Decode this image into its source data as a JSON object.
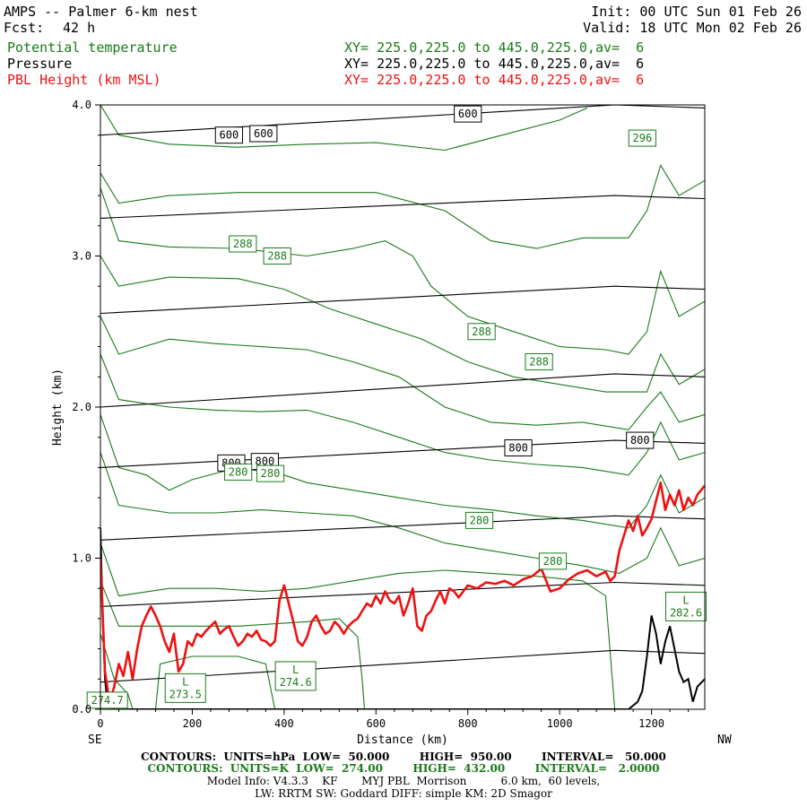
{
  "header": {
    "title": "AMPS -- Palmer 6-km nest",
    "init": "Init: 00 UTC Sun 01 Feb 26",
    "fcst_label": "Fcst:",
    "fcst_value": "42 h",
    "valid": "Valid: 18 UTC Mon 02 Feb 26",
    "fields": [
      {
        "name": "Potential temperature",
        "xy": "XY= 225.0,225.0 to 445.0,225.0,av=  6",
        "color": "#1a7a1a"
      },
      {
        "name": "Pressure",
        "xy": "XY= 225.0,225.0 to 445.0,225.0,av=  6",
        "color": "#000000"
      },
      {
        "name": "PBL Height (km MSL)",
        "xy": "XY= 225.0,225.0 to 445.0,225.0,av=  6",
        "color": "#ee1111"
      }
    ]
  },
  "footer": {
    "line1": "CONTOURS:  UNITS=hPa  LOW=  50.000        HIGH=  950.00        INTERVAL=   50.000",
    "line2": "CONTOURS:  UNITS=K  LOW=  274.00        HIGH=  432.00        INTERVAL=   2.0000",
    "line3": "Model Info: V4.3.3    KF       MYJ PBL  Morrison          6.0 km,  60 levels,",
    "line4": "LW: RRTM SW: Goddard DIFF: simple KM: 2D Smagor"
  },
  "chart_data": {
    "type": "line",
    "title": "AMPS -- Palmer 6-km nest",
    "xlabel": "Distance (km)",
    "ylabel": "Height (km)",
    "x_left_label": "SE",
    "x_right_label": "NW",
    "xlim": [
      0,
      1316
    ],
    "ylim": [
      0,
      4.0
    ],
    "xticks": [
      0,
      200,
      400,
      600,
      800,
      1000,
      1200
    ],
    "yticks": [
      0.0,
      1.0,
      2.0,
      3.0,
      4.0
    ],
    "ytick_labels": [
      "0.0",
      "1.0",
      "2.0",
      "3.0",
      "4.0"
    ],
    "pressure_contours": {
      "color": "#000000",
      "levels": [
        {
          "start": [
            0,
            0.18
          ],
          "end": [
            1120,
            0.39
          ]
        },
        {
          "start": [
            0,
            0.68
          ],
          "end": [
            1120,
            0.84
          ]
        },
        {
          "start": [
            0,
            1.12
          ],
          "end": [
            1120,
            1.28
          ]
        },
        {
          "start": [
            0,
            1.6
          ],
          "end": [
            1120,
            1.78
          ]
        },
        {
          "start": [
            0,
            2.0
          ],
          "end": [
            1120,
            2.22
          ]
        },
        {
          "start": [
            0,
            2.62
          ],
          "end": [
            1120,
            2.8
          ]
        },
        {
          "start": [
            0,
            3.25
          ],
          "end": [
            1120,
            3.4
          ]
        },
        {
          "start": [
            0,
            3.8
          ],
          "end": [
            1120,
            4.0
          ]
        }
      ],
      "labels": [
        {
          "text": "600",
          "x": 280,
          "y": 3.8
        },
        {
          "text": "600",
          "x": 355,
          "y": 3.81
        },
        {
          "text": "600",
          "x": 800,
          "y": 3.94
        },
        {
          "text": "800",
          "x": 285,
          "y": 1.63
        },
        {
          "text": "800",
          "x": 358,
          "y": 1.64
        },
        {
          "text": "800",
          "x": 910,
          "y": 1.73
        },
        {
          "text": "800",
          "x": 1175,
          "y": 1.78
        }
      ]
    },
    "theta_contours": {
      "color": "#1a7a1a",
      "series": [
        [
          [
            0,
            4.0
          ],
          [
            40,
            3.8
          ],
          [
            150,
            3.74
          ],
          [
            300,
            3.72
          ],
          [
            450,
            3.74
          ],
          [
            600,
            3.75
          ],
          [
            750,
            3.7
          ],
          [
            900,
            3.82
          ],
          [
            1000,
            3.9
          ],
          [
            1060,
            3.98
          ]
        ],
        [
          [
            0,
            3.55
          ],
          [
            40,
            3.35
          ],
          [
            150,
            3.4
          ],
          [
            300,
            3.42
          ],
          [
            450,
            3.42
          ],
          [
            600,
            3.42
          ],
          [
            750,
            3.3
          ],
          [
            850,
            3.1
          ],
          [
            950,
            3.05
          ],
          [
            1050,
            3.12
          ],
          [
            1150,
            3.12
          ],
          [
            1190,
            3.3
          ],
          [
            1220,
            3.6
          ],
          [
            1260,
            3.4
          ],
          [
            1316,
            3.5
          ]
        ],
        [
          [
            0,
            3.45
          ],
          [
            40,
            3.1
          ],
          [
            150,
            3.06
          ],
          [
            300,
            3.05
          ],
          [
            450,
            3.0
          ],
          [
            550,
            3.05
          ],
          [
            620,
            3.1
          ],
          [
            680,
            3.0
          ],
          [
            720,
            2.8
          ],
          [
            800,
            2.6
          ],
          [
            900,
            2.5
          ],
          [
            1000,
            2.4
          ],
          [
            1100,
            2.38
          ],
          [
            1150,
            2.35
          ],
          [
            1190,
            2.5
          ],
          [
            1220,
            2.9
          ],
          [
            1260,
            2.6
          ],
          [
            1316,
            2.7
          ]
        ],
        [
          [
            0,
            3.0
          ],
          [
            40,
            2.8
          ],
          [
            150,
            2.86
          ],
          [
            300,
            2.85
          ],
          [
            400,
            2.78
          ],
          [
            500,
            2.65
          ],
          [
            600,
            2.55
          ],
          [
            700,
            2.45
          ],
          [
            800,
            2.3
          ],
          [
            900,
            2.2
          ],
          [
            1000,
            2.15
          ],
          [
            1100,
            2.1
          ],
          [
            1190,
            2.1
          ],
          [
            1220,
            2.35
          ],
          [
            1260,
            2.15
          ],
          [
            1316,
            2.25
          ]
        ],
        [
          [
            0,
            2.6
          ],
          [
            40,
            2.35
          ],
          [
            150,
            2.45
          ],
          [
            250,
            2.42
          ],
          [
            350,
            2.4
          ],
          [
            450,
            2.38
          ],
          [
            550,
            2.3
          ],
          [
            650,
            2.2
          ],
          [
            750,
            2.0
          ],
          [
            850,
            1.9
          ],
          [
            950,
            1.88
          ],
          [
            1050,
            1.9
          ],
          [
            1150,
            1.85
          ],
          [
            1190,
            2.0
          ],
          [
            1220,
            2.1
          ],
          [
            1260,
            1.9
          ],
          [
            1316,
            1.95
          ]
        ],
        [
          [
            0,
            2.35
          ],
          [
            40,
            2.05
          ],
          [
            150,
            2.0
          ],
          [
            250,
            1.98
          ],
          [
            350,
            1.97
          ],
          [
            450,
            1.98
          ],
          [
            550,
            1.9
          ],
          [
            650,
            1.8
          ],
          [
            750,
            1.7
          ],
          [
            850,
            1.65
          ],
          [
            950,
            1.62
          ],
          [
            1050,
            1.6
          ],
          [
            1150,
            1.55
          ],
          [
            1190,
            1.7
          ],
          [
            1220,
            1.9
          ],
          [
            1260,
            1.65
          ],
          [
            1316,
            1.7
          ]
        ],
        [
          [
            0,
            1.95
          ],
          [
            40,
            1.6
          ],
          [
            100,
            1.55
          ],
          [
            150,
            1.45
          ],
          [
            200,
            1.52
          ],
          [
            300,
            1.6
          ],
          [
            400,
            1.55
          ],
          [
            450,
            1.5
          ],
          [
            550,
            1.45
          ],
          [
            650,
            1.4
          ],
          [
            750,
            1.35
          ],
          [
            850,
            1.32
          ],
          [
            950,
            1.28
          ],
          [
            1050,
            1.25
          ],
          [
            1150,
            1.2
          ],
          [
            1190,
            1.35
          ],
          [
            1220,
            1.55
          ],
          [
            1260,
            1.3
          ],
          [
            1316,
            1.4
          ]
        ],
        [
          [
            0,
            1.7
          ],
          [
            40,
            1.35
          ],
          [
            150,
            1.3
          ],
          [
            250,
            1.3
          ],
          [
            350,
            1.32
          ],
          [
            450,
            1.3
          ],
          [
            550,
            1.28
          ],
          [
            650,
            1.2
          ],
          [
            750,
            1.1
          ],
          [
            850,
            1.05
          ],
          [
            950,
            1.0
          ],
          [
            1050,
            0.95
          ],
          [
            1130,
            0.9
          ],
          [
            1190,
            1.0
          ],
          [
            1220,
            1.2
          ],
          [
            1260,
            0.95
          ],
          [
            1316,
            1.0
          ]
        ],
        [
          [
            0,
            1.1
          ],
          [
            40,
            0.75
          ],
          [
            150,
            0.8
          ],
          [
            250,
            0.8
          ],
          [
            350,
            0.78
          ],
          [
            450,
            0.8
          ],
          [
            550,
            0.85
          ],
          [
            650,
            0.9
          ],
          [
            750,
            0.92
          ],
          [
            850,
            0.9
          ],
          [
            950,
            0.88
          ],
          [
            1050,
            0.85
          ],
          [
            1100,
            0.75
          ],
          [
            1120,
            0.0
          ]
        ],
        [
          [
            0,
            0.85
          ],
          [
            40,
            0.55
          ],
          [
            150,
            0.55
          ],
          [
            300,
            0.55
          ],
          [
            450,
            0.58
          ],
          [
            520,
            0.6
          ],
          [
            560,
            0.48
          ],
          [
            570,
            0.2
          ],
          [
            575,
            0.0
          ]
        ],
        [
          [
            120,
            0.0
          ],
          [
            130,
            0.3
          ],
          [
            200,
            0.35
          ],
          [
            300,
            0.35
          ],
          [
            360,
            0.3
          ],
          [
            380,
            0.0
          ]
        ],
        [
          [
            0,
            0.5
          ],
          [
            30,
            0.2
          ],
          [
            60,
            0.1
          ],
          [
            70,
            0.0
          ]
        ]
      ],
      "labels": [
        {
          "text": "296",
          "x": 1180,
          "y": 3.78
        },
        {
          "text": "288",
          "x": 310,
          "y": 3.08
        },
        {
          "text": "288",
          "x": 385,
          "y": 3.0
        },
        {
          "text": "288",
          "x": 830,
          "y": 2.5
        },
        {
          "text": "288",
          "x": 955,
          "y": 2.3
        },
        {
          "text": "280",
          "x": 300,
          "y": 1.57
        },
        {
          "text": "280",
          "x": 370,
          "y": 1.56
        },
        {
          "text": "280",
          "x": 825,
          "y": 1.25
        },
        {
          "text": "280",
          "x": 985,
          "y": 0.98
        },
        {
          "text": "L 273.5",
          "x": 185,
          "y": 0.14
        },
        {
          "text": "L 274.6",
          "x": 425,
          "y": 0.22
        },
        {
          "text": "L 282.6",
          "x": 1275,
          "y": 0.68
        },
        {
          "text": "274.7",
          "x": 15,
          "y": 0.06
        }
      ]
    },
    "pbl_height": {
      "color": "#ee1111",
      "x": [
        0,
        10,
        20,
        30,
        40,
        50,
        60,
        70,
        80,
        90,
        100,
        110,
        120,
        130,
        140,
        150,
        160,
        170,
        180,
        190,
        200,
        210,
        220,
        230,
        240,
        250,
        260,
        270,
        280,
        290,
        300,
        310,
        320,
        330,
        340,
        350,
        360,
        370,
        380,
        390,
        400,
        410,
        420,
        430,
        440,
        450,
        460,
        470,
        480,
        490,
        500,
        510,
        520,
        530,
        540,
        550,
        560,
        570,
        580,
        590,
        600,
        610,
        620,
        630,
        640,
        650,
        660,
        670,
        680,
        690,
        700,
        710,
        720,
        730,
        740,
        750,
        760,
        770,
        780,
        790,
        800,
        820,
        840,
        860,
        880,
        900,
        920,
        940,
        960,
        980,
        1000,
        1020,
        1040,
        1060,
        1080,
        1100,
        1110,
        1120,
        1130,
        1140,
        1150,
        1160,
        1170,
        1180,
        1190,
        1200,
        1210,
        1220,
        1230,
        1240,
        1250,
        1260,
        1270,
        1280,
        1290,
        1300,
        1316
      ],
      "y": [
        1.0,
        0.25,
        0.05,
        0.15,
        0.3,
        0.22,
        0.38,
        0.2,
        0.4,
        0.55,
        0.62,
        0.68,
        0.62,
        0.55,
        0.45,
        0.38,
        0.5,
        0.25,
        0.3,
        0.45,
        0.42,
        0.5,
        0.48,
        0.52,
        0.55,
        0.58,
        0.5,
        0.53,
        0.55,
        0.48,
        0.42,
        0.45,
        0.5,
        0.48,
        0.52,
        0.46,
        0.45,
        0.42,
        0.45,
        0.72,
        0.82,
        0.7,
        0.58,
        0.45,
        0.42,
        0.48,
        0.58,
        0.62,
        0.55,
        0.5,
        0.52,
        0.58,
        0.55,
        0.5,
        0.55,
        0.58,
        0.6,
        0.65,
        0.7,
        0.68,
        0.75,
        0.7,
        0.78,
        0.72,
        0.7,
        0.75,
        0.62,
        0.7,
        0.8,
        0.55,
        0.52,
        0.62,
        0.65,
        0.72,
        0.78,
        0.7,
        0.8,
        0.78,
        0.74,
        0.78,
        0.82,
        0.8,
        0.84,
        0.83,
        0.85,
        0.82,
        0.86,
        0.88,
        0.93,
        0.78,
        0.8,
        0.86,
        0.9,
        0.92,
        0.88,
        0.91,
        0.85,
        0.88,
        1.05,
        1.15,
        1.25,
        1.18,
        1.28,
        1.15,
        1.2,
        1.26,
        1.38,
        1.5,
        1.32,
        1.42,
        1.35,
        1.45,
        1.32,
        1.4,
        1.35,
        1.42,
        1.48
      ]
    },
    "terrain": {
      "color": "#000000",
      "x": [
        0,
        5,
        10,
        15,
        20,
        25,
        40,
        1100,
        1130,
        1150,
        1170,
        1180,
        1190,
        1200,
        1210,
        1220,
        1230,
        1240,
        1250,
        1260,
        1270,
        1280,
        1290,
        1300,
        1316
      ],
      "y": [
        1.2,
        0.6,
        0.2,
        0.05,
        0.02,
        0.0,
        0.0,
        0.0,
        0.0,
        0.0,
        0.05,
        0.12,
        0.35,
        0.62,
        0.5,
        0.3,
        0.45,
        0.55,
        0.4,
        0.25,
        0.18,
        0.2,
        0.05,
        0.15,
        0.2
      ]
    }
  }
}
